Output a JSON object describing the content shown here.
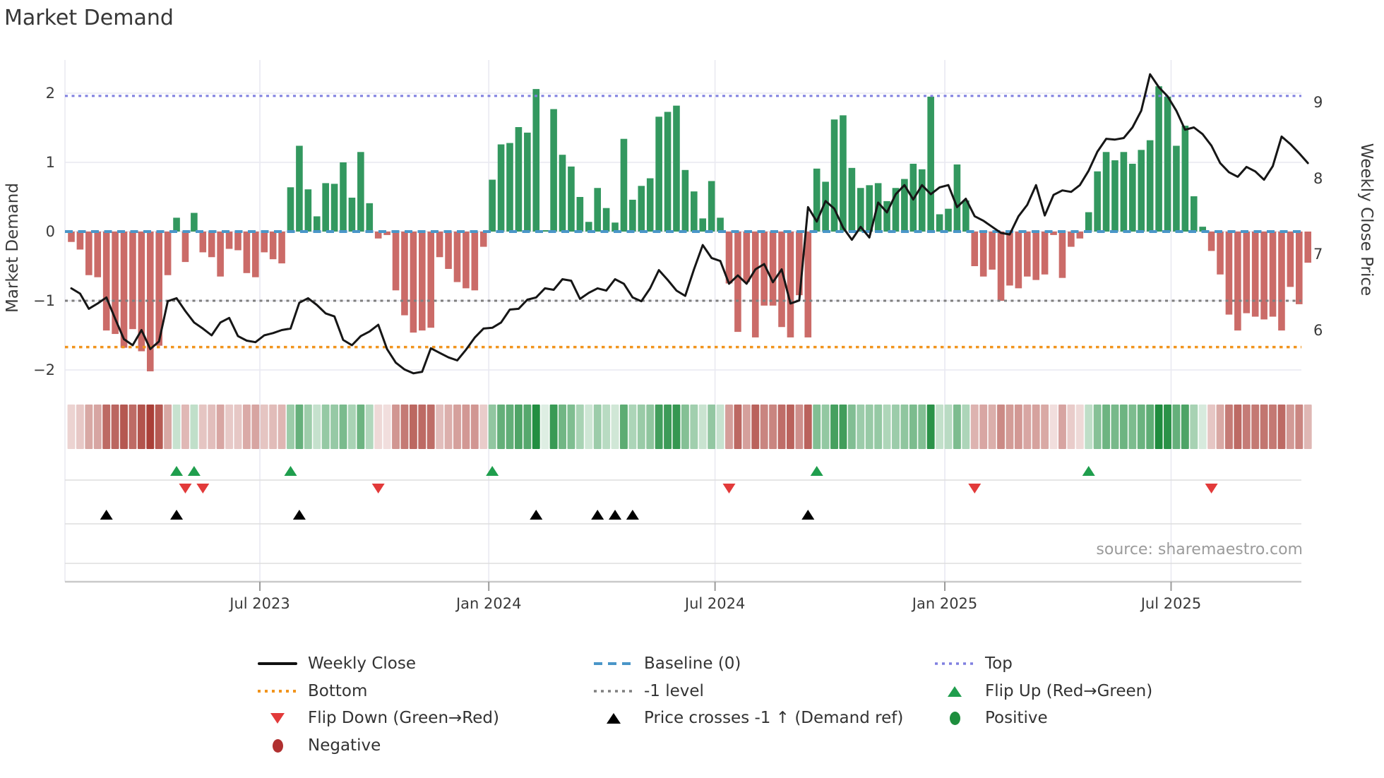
{
  "title": "Market Demand",
  "source": "source: sharemaestro.com",
  "axes": {
    "left_label": "Market Demand",
    "right_label": "Weekly Close Price",
    "left_ticks": [
      {
        "label": "2",
        "value": 2
      },
      {
        "label": "1",
        "value": 1
      },
      {
        "label": "0",
        "value": 0
      },
      {
        "label": "−1",
        "value": -1
      },
      {
        "label": "−2",
        "value": -2
      }
    ],
    "right_ticks": [
      {
        "label": "9",
        "value": 9
      },
      {
        "label": "8",
        "value": 8
      },
      {
        "label": "7",
        "value": 7
      },
      {
        "label": "6",
        "value": 6
      }
    ],
    "x_ticks": [
      {
        "label": "Jul 2023",
        "week": 21.5
      },
      {
        "label": "Jan 2024",
        "week": 47.6
      },
      {
        "label": "Jul 2024",
        "week": 73.4
      },
      {
        "label": "Jan 2025",
        "week": 99.6
      },
      {
        "label": "Jul 2025",
        "week": 125.4
      }
    ]
  },
  "chart_data": {
    "type": "bar",
    "subtype": "weekly demand bars + price line + signal heat strip + event markers",
    "weeks": 142,
    "demand_ylim": [
      -2.4,
      2.45
    ],
    "price_ylim": [
      5.2,
      9.55
    ],
    "grid": true,
    "ref_lines": {
      "baseline": 0,
      "top": 1.96,
      "bottom": -1.67,
      "minus_one": -1
    },
    "series": [
      {
        "name": "Market Demand (weekly bars)",
        "axis": "left",
        "values": [
          -0.15,
          -0.26,
          -0.63,
          -0.66,
          -1.43,
          -1.48,
          -1.68,
          -1.41,
          -1.73,
          -2.02,
          -1.65,
          -0.63,
          0.2,
          -0.44,
          0.27,
          -0.3,
          -0.37,
          -0.65,
          -0.25,
          -0.27,
          -0.6,
          -0.66,
          -0.3,
          -0.4,
          -0.46,
          0.64,
          1.24,
          0.61,
          0.22,
          0.7,
          0.69,
          1.0,
          0.49,
          1.15,
          0.41,
          -0.1,
          -0.05,
          -0.85,
          -1.21,
          -1.46,
          -1.43,
          -1.39,
          -0.37,
          -0.54,
          -0.73,
          -0.82,
          -0.85,
          -0.22,
          0.75,
          1.26,
          1.28,
          1.51,
          1.43,
          2.06,
          0.02,
          1.77,
          1.11,
          0.94,
          0.5,
          0.14,
          0.63,
          0.34,
          0.13,
          1.34,
          0.46,
          0.66,
          0.77,
          1.66,
          1.73,
          1.82,
          0.89,
          0.58,
          0.19,
          0.73,
          0.2,
          -0.75,
          -1.45,
          -0.73,
          -1.53,
          -1.07,
          -1.07,
          -1.38,
          -1.53,
          -0.92,
          -1.53,
          0.91,
          0.72,
          1.62,
          1.68,
          0.92,
          0.63,
          0.67,
          0.7,
          0.44,
          0.63,
          0.76,
          0.98,
          0.9,
          1.95,
          0.25,
          0.33,
          0.97,
          0.45,
          -0.5,
          -0.65,
          -0.55,
          -1.0,
          -0.78,
          -0.82,
          -0.65,
          -0.7,
          -0.62,
          -0.05,
          -0.67,
          -0.22,
          -0.1,
          0.28,
          0.87,
          1.15,
          1.03,
          1.15,
          0.98,
          1.18,
          1.32,
          2.1,
          1.95,
          1.24,
          1.53,
          0.51,
          0.07,
          -0.28,
          -0.62,
          -1.2,
          -1.43,
          -1.18,
          -1.23,
          -1.27,
          -1.23,
          -1.43,
          -0.8,
          -1.05,
          -0.45
        ]
      },
      {
        "name": "Weekly Close",
        "axis": "right",
        "values": [
          6.55,
          6.48,
          6.28,
          6.35,
          6.43,
          6.15,
          5.88,
          5.8,
          6.0,
          5.75,
          5.85,
          6.38,
          6.42,
          6.25,
          6.1,
          6.02,
          5.93,
          6.1,
          6.16,
          5.92,
          5.86,
          5.84,
          5.93,
          5.96,
          6.0,
          6.02,
          6.36,
          6.42,
          6.33,
          6.22,
          6.18,
          5.87,
          5.8,
          5.92,
          5.98,
          6.07,
          5.75,
          5.57,
          5.48,
          5.43,
          5.45,
          5.76,
          5.7,
          5.64,
          5.6,
          5.74,
          5.9,
          6.02,
          6.03,
          6.1,
          6.27,
          6.28,
          6.4,
          6.43,
          6.55,
          6.53,
          6.67,
          6.65,
          6.41,
          6.49,
          6.55,
          6.52,
          6.67,
          6.61,
          6.43,
          6.38,
          6.55,
          6.79,
          6.66,
          6.52,
          6.45,
          6.8,
          7.12,
          6.95,
          6.91,
          6.61,
          6.72,
          6.61,
          6.8,
          6.87,
          6.63,
          6.8,
          6.35,
          6.39,
          7.62,
          7.43,
          7.7,
          7.6,
          7.35,
          7.19,
          7.36,
          7.22,
          7.68,
          7.55,
          7.79,
          7.91,
          7.72,
          7.91,
          7.79,
          7.88,
          7.91,
          7.62,
          7.73,
          7.5,
          7.44,
          7.36,
          7.28,
          7.26,
          7.5,
          7.65,
          7.91,
          7.51,
          7.78,
          7.84,
          7.82,
          7.91,
          8.1,
          8.35,
          8.52,
          8.51,
          8.53,
          8.67,
          8.89,
          9.37,
          9.2,
          9.08,
          8.89,
          8.64,
          8.67,
          8.58,
          8.43,
          8.2,
          8.08,
          8.02,
          8.15,
          8.09,
          7.98,
          8.16,
          8.55,
          8.45,
          8.33,
          8.2
        ]
      }
    ],
    "markers": {
      "flip_up_weeks": [
        12,
        14,
        25,
        48,
        85,
        116
      ],
      "flip_down_weeks": [
        13,
        15,
        35,
        75,
        103,
        130
      ],
      "price_cross_weeks": [
        4,
        12,
        26,
        53,
        60,
        62,
        64,
        84
      ]
    },
    "heat_strip": "cell color intensity proportional to |demand| (green positive, red negative)"
  },
  "legend": {
    "items": [
      {
        "icon": "line-solid-black",
        "label": "Weekly Close",
        "col": 0,
        "row": 0
      },
      {
        "icon": "dotted-orange",
        "label": "Bottom",
        "col": 0,
        "row": 1
      },
      {
        "icon": "triangle-down-red",
        "label": "Flip Down (Green→Red)",
        "col": 0,
        "row": 2
      },
      {
        "icon": "circle-dark-red",
        "label": "Negative",
        "col": 0,
        "row": 3
      },
      {
        "icon": "dashed-blue",
        "label": "Baseline (0)",
        "col": 1,
        "row": 0
      },
      {
        "icon": "dotted-gray",
        "label": "-1 level",
        "col": 1,
        "row": 1
      },
      {
        "icon": "triangle-up-black",
        "label": "Price crosses -1 ↑ (Demand ref)",
        "col": 1,
        "row": 2
      },
      {
        "icon": "dotted-purple",
        "label": "Top",
        "col": 2,
        "row": 0
      },
      {
        "icon": "triangle-up-green",
        "label": "Flip Up (Red→Green)",
        "col": 2,
        "row": 1
      },
      {
        "icon": "circle-green",
        "label": "Positive",
        "col": 2,
        "row": 2
      }
    ]
  },
  "colors": {
    "bar_positive": "#33985f",
    "bar_negative": "#cb6b68",
    "price_line": "#161616",
    "baseline": "#4a96c8",
    "top_line": "#8080e0",
    "bottom_line": "#f1941d",
    "minus_one_line": "#7f7f7f",
    "flip_up": "#1f9e4d",
    "flip_down": "#e23a3a",
    "positive_dot": "#1e8e3e",
    "negative_dot": "#b03030",
    "heat_green": "#1f8c3e",
    "heat_red": "#a83a32",
    "grid": "#e9e9f1",
    "panel_line": "#dedede",
    "axis_line": "#c9c9c9",
    "tick": "#9a9a9a"
  }
}
